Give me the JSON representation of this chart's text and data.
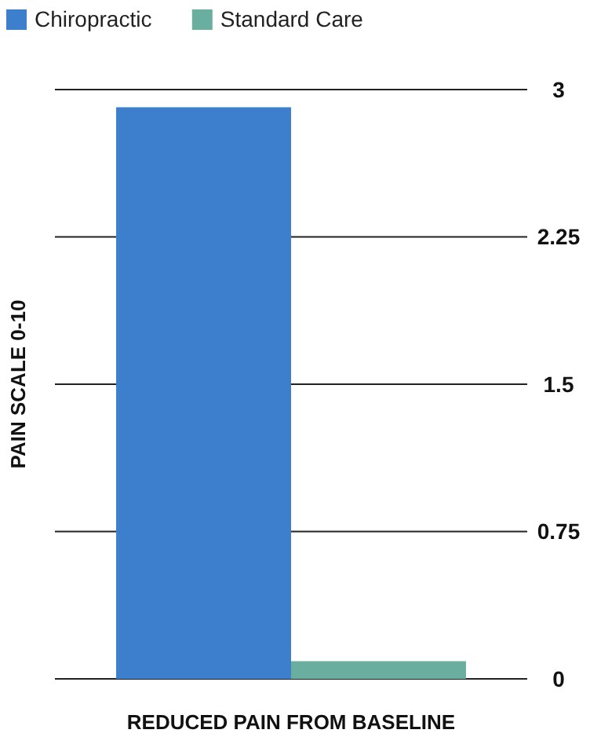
{
  "chart_data": {
    "type": "bar",
    "categories": [
      "REDUCED PAIN FROM BASELINE"
    ],
    "ylabel": "PAIN SCALE 0-10",
    "series": [
      {
        "name": "Chiropractic",
        "color": "#3d7fcc",
        "values": [
          2.91
        ]
      },
      {
        "name": "Standard Care",
        "color": "#6aaea0",
        "values": [
          0.09
        ]
      }
    ],
    "ylim": [
      0,
      3
    ],
    "yticks": [
      0,
      0.75,
      1.5,
      2.25,
      3
    ],
    "grid": "y",
    "legend": "top left"
  }
}
